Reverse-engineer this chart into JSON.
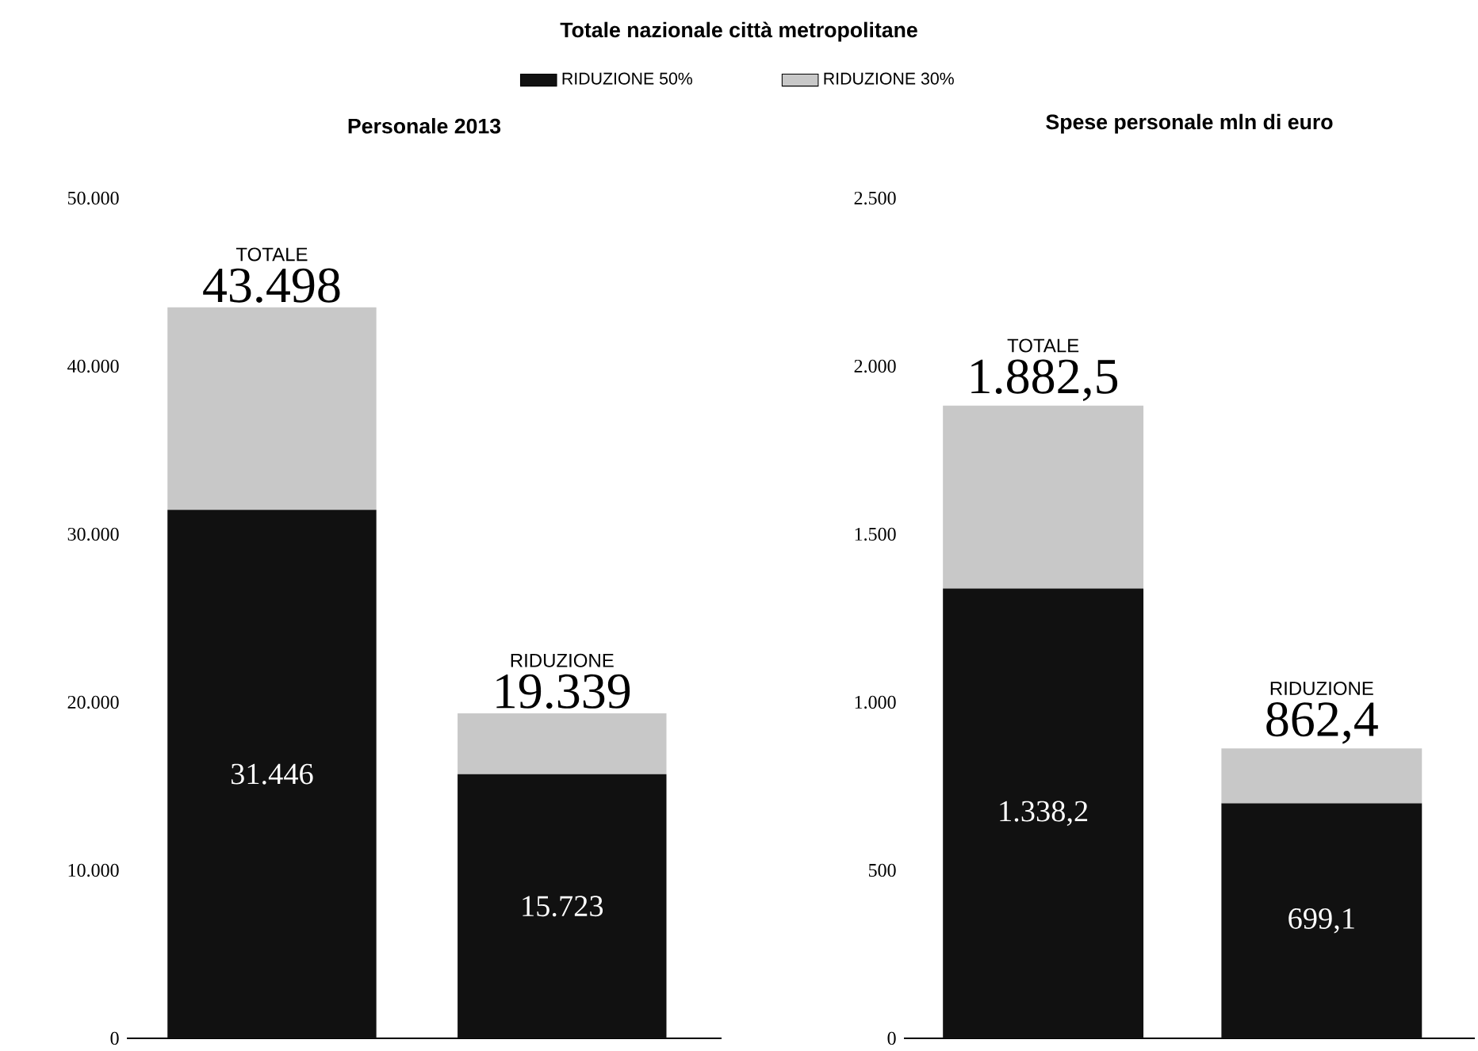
{
  "chart_data": [
    {
      "type": "bar",
      "stacked": true,
      "title": "Personale 2013",
      "annotations": [
        "Totale nazionale città metropolitane"
      ],
      "categories": [
        "TOTALE",
        "RIDUZIONE"
      ],
      "series": [
        {
          "name": "RIDUZIONE 50%",
          "color": "#111111",
          "values": [
            31446,
            15723
          ],
          "value_labels": [
            "31.446",
            "15.723"
          ]
        },
        {
          "name": "RIDUZIONE 30%",
          "color": "#c8c8c8",
          "values": [
            12052,
            3616
          ]
        }
      ],
      "totals": [
        "43.498",
        "19.339"
      ],
      "ylim": [
        0,
        50000
      ],
      "yticks": [
        0,
        {
          "value": 10000,
          "label": "10.000"
        },
        {
          "value": 20000,
          "label": "20.000"
        },
        {
          "value": 30000,
          "label": "30.000"
        },
        {
          "value": 40000,
          "label": "40.000"
        },
        {
          "value": 50000,
          "label": "50.000"
        }
      ],
      "tick_labels": "y",
      "legend": "top"
    },
    {
      "type": "bar",
      "stacked": true,
      "title": "**Spese personale** mln di euro",
      "categories": [
        "TOTALE",
        "RIDUZIONE"
      ],
      "series": [
        {
          "color": "#111111",
          "values": [
            1338.2,
            699.1
          ],
          "value_labels": [
            "1.338,2",
            "699,1"
          ]
        },
        {
          "color": "#c8c8c8",
          "values": [
            544.3,
            163.3
          ]
        }
      ],
      "totals": [
        "1.882,5",
        "862,4"
      ],
      "ylim": [
        0,
        2500
      ],
      "yticks": [
        0,
        500,
        {
          "value": 1000,
          "label": "1.000"
        },
        {
          "value": 1500,
          "label": "1.500"
        },
        {
          "value": 2000,
          "label": "2.000"
        },
        {
          "value": 2500,
          "label": "2.500"
        }
      ],
      "tick_labels": "y"
    }
  ]
}
